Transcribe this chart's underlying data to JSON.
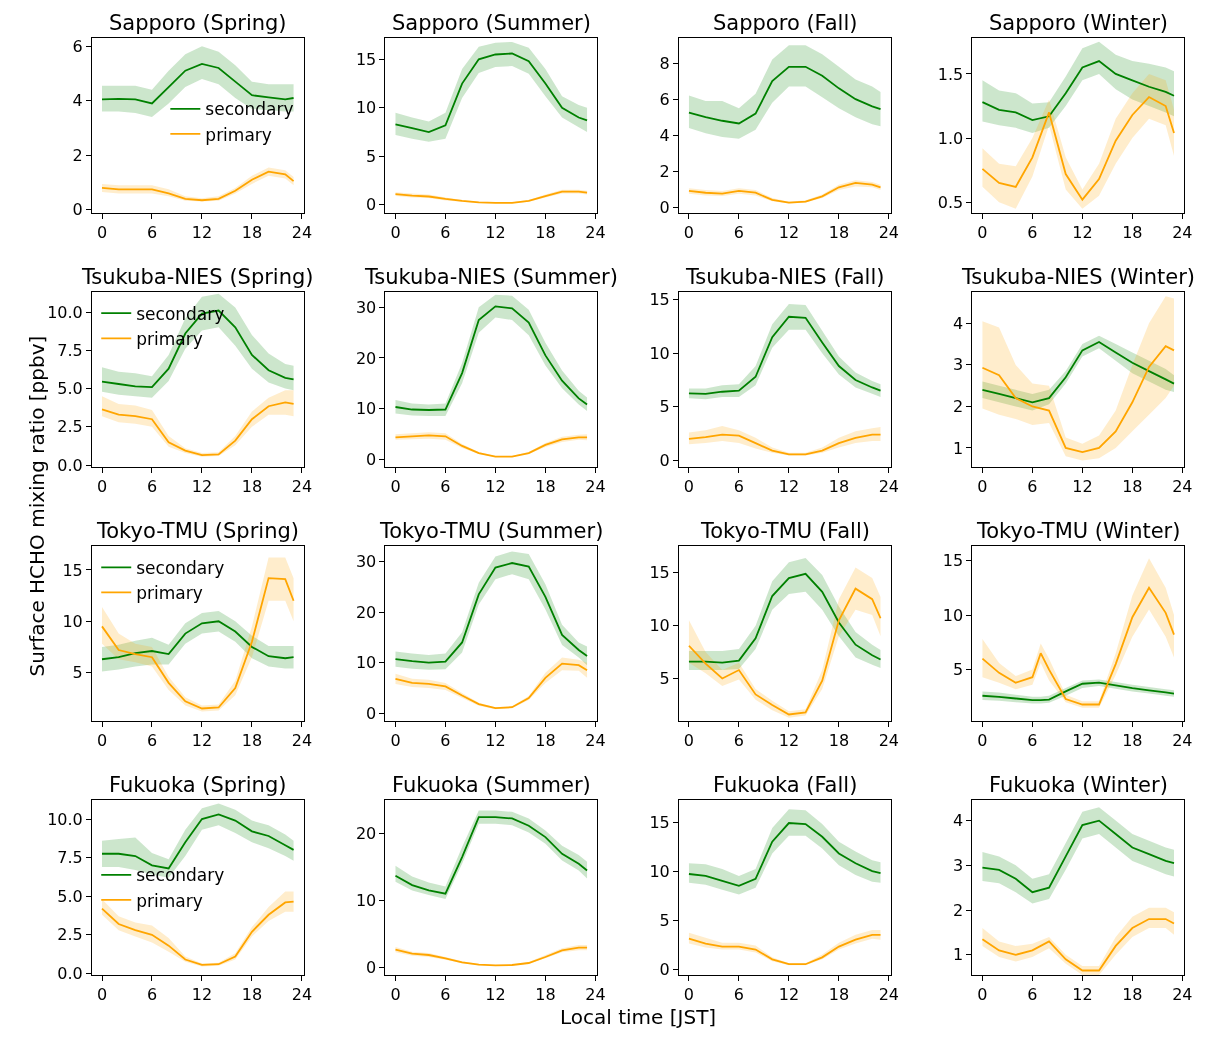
{
  "chart_data": [
    {
      "type": "line",
      "title": "Sapporo (Spring)",
      "legend": "center right",
      "x": [
        0,
        2,
        4,
        6,
        8,
        10,
        12,
        14,
        16,
        18,
        20,
        22,
        23
      ],
      "xlim": [
        -1.2,
        24.2
      ],
      "xticks": [
        0,
        6,
        12,
        18,
        24
      ],
      "ylim": [
        -0.1,
        6.3
      ],
      "yticks": [
        0,
        2,
        4,
        6
      ],
      "series": [
        {
          "name": "secondary",
          "color": "#008000",
          "values": [
            4.05,
            4.07,
            4.05,
            3.9,
            4.5,
            5.1,
            5.35,
            5.2,
            4.7,
            4.2,
            4.12,
            4.05,
            4.1
          ],
          "lower": [
            3.6,
            3.6,
            3.55,
            3.4,
            3.9,
            4.5,
            4.8,
            4.6,
            4.1,
            3.7,
            3.65,
            3.6,
            3.6
          ],
          "upper": [
            4.55,
            4.55,
            4.55,
            4.4,
            5.1,
            5.7,
            6.0,
            5.8,
            5.3,
            4.7,
            4.6,
            4.6,
            4.6
          ]
        },
        {
          "name": "primary",
          "color": "#ffa500",
          "values": [
            0.8,
            0.75,
            0.75,
            0.75,
            0.6,
            0.4,
            0.35,
            0.4,
            0.7,
            1.1,
            1.4,
            1.3,
            1.05
          ],
          "lower": [
            0.65,
            0.6,
            0.6,
            0.6,
            0.5,
            0.33,
            0.3,
            0.33,
            0.6,
            0.95,
            1.25,
            1.15,
            0.9
          ],
          "upper": [
            0.95,
            0.9,
            0.9,
            0.9,
            0.75,
            0.5,
            0.42,
            0.5,
            0.8,
            1.25,
            1.55,
            1.45,
            1.2
          ]
        }
      ]
    },
    {
      "type": "line",
      "title": "Sapporo (Summer)",
      "x": [
        0,
        2,
        4,
        6,
        8,
        10,
        12,
        14,
        16,
        18,
        20,
        22,
        23
      ],
      "xlim": [
        -1.2,
        24.2
      ],
      "xticks": [
        0,
        6,
        12,
        18,
        24
      ],
      "ylim": [
        -0.8,
        17.2
      ],
      "yticks": [
        0,
        5,
        10,
        15
      ],
      "series": [
        {
          "color": "#008000",
          "values": [
            8.3,
            7.9,
            7.5,
            8.2,
            12.5,
            15.0,
            15.5,
            15.6,
            14.8,
            12.5,
            10.0,
            9.0,
            8.7
          ],
          "lower": [
            7.2,
            6.8,
            6.5,
            6.8,
            11,
            13.6,
            14.2,
            14.3,
            13.5,
            11.2,
            9,
            8,
            7.5
          ],
          "upper": [
            9.5,
            9.0,
            8.6,
            9.5,
            14,
            16.3,
            16.7,
            16.8,
            16.2,
            14,
            11.2,
            10.3,
            10
          ]
        },
        {
          "color": "#ffa500",
          "values": [
            1.1,
            0.95,
            0.85,
            0.6,
            0.4,
            0.25,
            0.2,
            0.2,
            0.4,
            0.9,
            1.35,
            1.35,
            1.25
          ],
          "lower": [
            0.9,
            0.75,
            0.7,
            0.45,
            0.3,
            0.18,
            0.15,
            0.15,
            0.3,
            0.75,
            1.15,
            1.15,
            1.05
          ],
          "upper": [
            1.3,
            1.15,
            1.05,
            0.75,
            0.5,
            0.32,
            0.27,
            0.27,
            0.5,
            1.05,
            1.55,
            1.55,
            1.45
          ]
        }
      ]
    },
    {
      "type": "line",
      "title": "Sapporo (Fall)",
      "x": [
        0,
        2,
        4,
        6,
        8,
        10,
        12,
        14,
        16,
        18,
        20,
        22,
        23
      ],
      "xlim": [
        -1.2,
        24.2
      ],
      "xticks": [
        0,
        6,
        12,
        18,
        24
      ],
      "ylim": [
        -0.3,
        9.4
      ],
      "yticks": [
        0,
        2,
        4,
        6,
        8
      ],
      "series": [
        {
          "color": "#008000",
          "values": [
            5.25,
            5.0,
            4.8,
            4.65,
            5.2,
            7.0,
            7.8,
            7.8,
            7.3,
            6.6,
            6.0,
            5.6,
            5.45
          ],
          "lower": [
            4.4,
            4.1,
            3.9,
            3.8,
            4.3,
            5.8,
            6.7,
            6.7,
            6.1,
            5.5,
            5.0,
            4.6,
            4.5
          ],
          "upper": [
            6.2,
            5.9,
            5.9,
            5.5,
            6.3,
            8.2,
            9.0,
            9.0,
            8.5,
            7.8,
            7.1,
            6.7,
            6.4
          ]
        },
        {
          "color": "#ffa500",
          "values": [
            0.9,
            0.8,
            0.75,
            0.9,
            0.8,
            0.4,
            0.25,
            0.3,
            0.6,
            1.1,
            1.35,
            1.25,
            1.1
          ],
          "lower": [
            0.75,
            0.65,
            0.62,
            0.75,
            0.65,
            0.32,
            0.2,
            0.25,
            0.5,
            0.95,
            1.15,
            1.1,
            0.95
          ],
          "upper": [
            1.05,
            0.95,
            0.9,
            1.05,
            0.95,
            0.5,
            0.3,
            0.38,
            0.7,
            1.25,
            1.5,
            1.4,
            1.25
          ]
        }
      ]
    },
    {
      "type": "line",
      "title": "Sapporo (Winter)",
      "x": [
        0,
        2,
        4,
        6,
        8,
        10,
        12,
        14,
        16,
        18,
        20,
        22,
        23
      ],
      "xlim": [
        -1.2,
        24.2
      ],
      "xticks": [
        0,
        6,
        12,
        18,
        24
      ],
      "ylim": [
        0.42,
        1.78
      ],
      "yticks": [
        0.5,
        {
          "value": 1,
          "label": "1.0"
        },
        1.5
      ],
      "series": [
        {
          "color": "#008000",
          "values": [
            1.28,
            1.22,
            1.2,
            1.14,
            1.17,
            1.35,
            1.55,
            1.6,
            1.5,
            1.45,
            1.4,
            1.36,
            1.33
          ],
          "lower": [
            1.13,
            1.1,
            1.08,
            1.04,
            1.08,
            1.25,
            1.45,
            1.5,
            1.38,
            1.3,
            1.25,
            1.2,
            1.17
          ],
          "upper": [
            1.45,
            1.37,
            1.35,
            1.27,
            1.28,
            1.48,
            1.7,
            1.75,
            1.65,
            1.6,
            1.58,
            1.55,
            1.52
          ]
        },
        {
          "color": "#ffa500",
          "values": [
            0.76,
            0.65,
            0.62,
            0.85,
            1.2,
            0.72,
            0.52,
            0.68,
            0.98,
            1.18,
            1.32,
            1.25,
            1.04
          ],
          "lower": [
            0.62,
            0.5,
            0.45,
            0.7,
            1.1,
            0.6,
            0.45,
            0.55,
            0.8,
            1.0,
            1.15,
            1.1,
            0.86
          ],
          "upper": [
            0.92,
            0.8,
            0.78,
            1.0,
            1.3,
            0.85,
            0.6,
            0.8,
            1.15,
            1.35,
            1.5,
            1.45,
            1.22
          ]
        }
      ]
    },
    {
      "type": "line",
      "title": "Tsukuba-NIES (Spring)",
      "legend": "top left",
      "x": [
        0,
        2,
        4,
        6,
        8,
        10,
        12,
        14,
        16,
        18,
        20,
        22,
        23
      ],
      "xlim": [
        -1.2,
        24.2
      ],
      "xticks": [
        0,
        6,
        12,
        18,
        24
      ],
      "ylim": [
        -0.1,
        11.3
      ],
      "yticks": [
        {
          "value": 0,
          "label": "0.0"
        },
        2.5,
        {
          "value": 5,
          "label": "5.0"
        },
        7.5,
        {
          "value": 10,
          "label": "10.0"
        }
      ],
      "series": [
        {
          "name": "secondary",
          "color": "#008000",
          "values": [
            5.45,
            5.3,
            5.15,
            5.1,
            6.3,
            8.6,
            9.9,
            10.1,
            9.0,
            7.2,
            6.2,
            5.7,
            5.6
          ],
          "lower": [
            4.8,
            4.6,
            4.5,
            4.4,
            5.5,
            7.6,
            8.8,
            9.0,
            7.8,
            6.3,
            5.4,
            5.0,
            4.9
          ],
          "upper": [
            6.4,
            6.1,
            6.0,
            5.8,
            7.2,
            9.6,
            11,
            11.2,
            10.3,
            8.5,
            7.3,
            6.6,
            6.5
          ]
        },
        {
          "name": "primary",
          "color": "#ffa500",
          "values": [
            3.65,
            3.3,
            3.2,
            3.0,
            1.5,
            0.95,
            0.65,
            0.7,
            1.6,
            3.0,
            3.85,
            4.1,
            4.0
          ],
          "lower": [
            3.2,
            2.8,
            2.7,
            2.5,
            1.2,
            0.8,
            0.55,
            0.6,
            1.3,
            2.5,
            3.3,
            3.3,
            3.2
          ],
          "upper": [
            4.5,
            4.0,
            3.9,
            3.6,
            1.9,
            1.1,
            0.8,
            0.85,
            1.9,
            3.5,
            4.4,
            4.9,
            4.9
          ]
        }
      ]
    },
    {
      "type": "line",
      "title": "Tsukuba-NIES (Summer)",
      "x": [
        0,
        2,
        4,
        6,
        8,
        10,
        12,
        14,
        16,
        18,
        20,
        22,
        23
      ],
      "xlim": [
        -1.2,
        24.2
      ],
      "xticks": [
        0,
        6,
        12,
        18,
        24
      ],
      "ylim": [
        -1.5,
        33
      ],
      "yticks": [
        0,
        10,
        20,
        30
      ],
      "series": [
        {
          "color": "#008000",
          "values": [
            10.3,
            9.8,
            9.7,
            9.8,
            17,
            27.5,
            30.2,
            29.8,
            27,
            20.5,
            15.5,
            12,
            10.8
          ],
          "lower": [
            9,
            8.6,
            8.5,
            8.5,
            15,
            25,
            28,
            27.5,
            24.5,
            18.5,
            14,
            10.8,
            9.5
          ],
          "upper": [
            11.7,
            11,
            10.8,
            11,
            19,
            30,
            32.5,
            32.3,
            29.5,
            23,
            17.5,
            13.5,
            12.2
          ]
        },
        {
          "color": "#ffa500",
          "values": [
            4.3,
            4.5,
            4.7,
            4.5,
            2.6,
            1.2,
            0.5,
            0.5,
            1.2,
            2.8,
            3.9,
            4.3,
            4.3
          ],
          "lower": [
            3.8,
            3.9,
            4.0,
            3.8,
            2.2,
            1.0,
            0.4,
            0.4,
            1.0,
            2.4,
            3.4,
            3.8,
            3.7
          ],
          "upper": [
            4.9,
            5.1,
            5.3,
            5.1,
            3.0,
            1.4,
            0.6,
            0.6,
            1.4,
            3.2,
            4.4,
            4.8,
            4.9
          ]
        }
      ]
    },
    {
      "type": "line",
      "title": "Tsukuba-NIES (Fall)",
      "x": [
        0,
        2,
        4,
        6,
        8,
        10,
        12,
        14,
        16,
        18,
        20,
        22,
        23
      ],
      "xlim": [
        -1.2,
        24.2
      ],
      "xticks": [
        0,
        6,
        12,
        18,
        24
      ],
      "ylim": [
        -0.6,
        15.7
      ],
      "yticks": [
        0,
        5,
        10,
        15
      ],
      "series": [
        {
          "color": "#008000",
          "values": [
            6.25,
            6.2,
            6.4,
            6.5,
            7.8,
            11.5,
            13.4,
            13.3,
            11.0,
            8.8,
            7.5,
            6.8,
            6.5
          ],
          "lower": [
            5.8,
            5.7,
            5.9,
            5.9,
            7.0,
            10.5,
            12.2,
            12.2,
            10,
            8,
            6.8,
            6.2,
            5.9
          ],
          "upper": [
            6.7,
            6.7,
            7.0,
            7.1,
            8.8,
            12.7,
            14.6,
            14.5,
            12.1,
            9.7,
            8.2,
            7.4,
            7.1
          ]
        },
        {
          "color": "#ffa500",
          "values": [
            2.0,
            2.15,
            2.4,
            2.3,
            1.6,
            0.9,
            0.55,
            0.55,
            0.9,
            1.6,
            2.1,
            2.4,
            2.4
          ],
          "lower": [
            1.5,
            1.6,
            1.8,
            1.6,
            1.1,
            0.7,
            0.45,
            0.45,
            0.7,
            1.2,
            1.6,
            1.8,
            1.8
          ],
          "upper": [
            2.6,
            2.8,
            3.2,
            2.8,
            2.1,
            1.2,
            0.7,
            0.7,
            1.2,
            2.1,
            2.7,
            3.0,
            3.1
          ]
        }
      ]
    },
    {
      "type": "line",
      "title": "Tsukuba-NIES (Winter)",
      "x": [
        0,
        2,
        4,
        6,
        8,
        10,
        12,
        14,
        16,
        18,
        20,
        22,
        23
      ],
      "xlim": [
        -1.2,
        24.2
      ],
      "xticks": [
        0,
        6,
        12,
        18,
        24
      ],
      "ylim": [
        0.55,
        4.75
      ],
      "yticks": [
        1,
        2,
        3,
        4
      ],
      "series": [
        {
          "color": "#008000",
          "values": [
            2.4,
            2.3,
            2.2,
            2.1,
            2.2,
            2.7,
            3.35,
            3.55,
            3.3,
            3.05,
            2.85,
            2.65,
            2.55
          ],
          "lower": [
            2.2,
            2.1,
            2.0,
            1.9,
            2.05,
            2.55,
            3.2,
            3.4,
            3.1,
            2.8,
            2.6,
            2.4,
            2.35
          ],
          "upper": [
            2.6,
            2.5,
            2.4,
            2.3,
            2.4,
            2.85,
            3.5,
            3.7,
            3.5,
            3.3,
            3.1,
            2.9,
            2.75
          ]
        },
        {
          "color": "#ffa500",
          "values": [
            2.93,
            2.75,
            2.2,
            2.0,
            1.9,
            1.0,
            0.9,
            1.0,
            1.4,
            2.1,
            2.95,
            3.45,
            3.35
          ],
          "lower": [
            1.95,
            1.8,
            1.7,
            1.55,
            1.6,
            0.8,
            0.7,
            0.75,
            1.0,
            1.4,
            1.8,
            2.2,
            2.5
          ],
          "upper": [
            4.05,
            3.9,
            3.0,
            2.55,
            2.5,
            1.25,
            1.1,
            1.3,
            1.9,
            3.0,
            4.0,
            4.65,
            4.6
          ]
        }
      ]
    },
    {
      "type": "line",
      "title": "Tokyo-TMU (Spring)",
      "ylabel": "Surface HCHO mixing ratio [ppbv]",
      "legend": "top left",
      "x": [
        0,
        2,
        4,
        6,
        8,
        10,
        12,
        14,
        16,
        18,
        20,
        22,
        23
      ],
      "xlim": [
        -1.2,
        24.2
      ],
      "xticks": [
        0,
        6,
        12,
        18,
        24
      ],
      "ylim": [
        0.3,
        17.3
      ],
      "yticks": [
        5,
        10,
        15
      ],
      "series": [
        {
          "name": "secondary",
          "color": "#008000",
          "values": [
            6.3,
            6.5,
            6.9,
            7.1,
            6.8,
            8.8,
            9.8,
            10.0,
            9.0,
            7.5,
            6.6,
            6.4,
            6.5
          ],
          "lower": [
            5.1,
            5.3,
            5.6,
            5.8,
            5.8,
            7.8,
            8.8,
            9.0,
            8.0,
            6.4,
            5.6,
            5.4,
            5.4
          ],
          "upper": [
            7.5,
            7.7,
            8.1,
            8.4,
            7.7,
            9.8,
            10.8,
            11,
            10.0,
            8.6,
            7.6,
            7.6,
            7.6
          ]
        },
        {
          "name": "primary",
          "color": "#ffa500",
          "values": [
            9.5,
            7.2,
            6.8,
            6.5,
            4.0,
            2.2,
            1.5,
            1.6,
            3.5,
            8.0,
            14.2,
            14.1,
            12.0
          ],
          "lower": [
            7.8,
            6.3,
            6.0,
            5.6,
            3.3,
            1.8,
            1.2,
            1.3,
            2.8,
            6.5,
            12,
            12,
            10
          ],
          "upper": [
            11.4,
            8.8,
            7.8,
            7.5,
            4.6,
            2.6,
            1.8,
            1.9,
            4.2,
            9.5,
            16.2,
            16.2,
            14.2
          ]
        }
      ]
    },
    {
      "type": "line",
      "title": "Tokyo-TMU (Summer)",
      "x": [
        0,
        2,
        4,
        6,
        8,
        10,
        12,
        14,
        16,
        18,
        20,
        22,
        23
      ],
      "xlim": [
        -1.2,
        24.2
      ],
      "xticks": [
        0,
        6,
        12,
        18,
        24
      ],
      "ylim": [
        -1.5,
        33
      ],
      "yticks": [
        0,
        10,
        20,
        30
      ],
      "series": [
        {
          "color": "#008000",
          "values": [
            10.7,
            10.3,
            10.0,
            10.2,
            14,
            23.5,
            28.8,
            29.7,
            29.0,
            23,
            15.5,
            12.5,
            11.3
          ],
          "lower": [
            9.2,
            8.8,
            8.6,
            8.7,
            12,
            21.5,
            26.5,
            27.5,
            26.5,
            20.5,
            13.5,
            11,
            9.5
          ],
          "upper": [
            12.2,
            11.8,
            11.5,
            11.8,
            16,
            25.8,
            31,
            32,
            31.5,
            25.5,
            17.5,
            14,
            13.2
          ]
        },
        {
          "color": "#ffa500",
          "values": [
            6.8,
            6.0,
            5.8,
            5.3,
            3.5,
            1.8,
            1.0,
            1.2,
            3.0,
            7.0,
            9.8,
            9.5,
            8.5
          ],
          "lower": [
            5.8,
            5.2,
            5.0,
            4.6,
            3.0,
            1.5,
            0.8,
            1.0,
            2.6,
            6.0,
            8.5,
            8.4,
            7.0
          ],
          "upper": [
            7.8,
            6.8,
            6.6,
            6.0,
            4.0,
            2.1,
            1.2,
            1.4,
            3.4,
            8.0,
            11.0,
            10.6,
            10.0
          ]
        }
      ]
    },
    {
      "type": "line",
      "title": "Tokyo-TMU (Fall)",
      "x": [
        0,
        2,
        4,
        6,
        8,
        10,
        12,
        14,
        16,
        18,
        20,
        22,
        23
      ],
      "xlim": [
        -1.2,
        24.2
      ],
      "xticks": [
        0,
        6,
        12,
        18,
        24
      ],
      "ylim": [
        1.0,
        17.5
      ],
      "yticks": [
        5,
        10,
        15
      ],
      "series": [
        {
          "color": "#008000",
          "values": [
            6.6,
            6.6,
            6.5,
            6.7,
            8.8,
            12.8,
            14.5,
            14.9,
            13.2,
            10.3,
            8.2,
            7.2,
            6.8
          ],
          "lower": [
            5.8,
            5.8,
            5.8,
            5.9,
            7.8,
            11.5,
            13.0,
            13.2,
            11.5,
            9.0,
            7.0,
            6.3,
            6.0
          ],
          "upper": [
            7.6,
            7.6,
            7.6,
            7.8,
            10,
            14.2,
            16,
            16.4,
            14.8,
            11.8,
            9.4,
            8.2,
            7.7
          ]
        },
        {
          "color": "#ffa500",
          "values": [
            8.1,
            6.4,
            5.0,
            5.8,
            3.5,
            2.5,
            1.6,
            1.8,
            4.8,
            10.5,
            13.5,
            12.5,
            10.7
          ],
          "lower": [
            6.5,
            5.5,
            4.3,
            4.9,
            3.0,
            2.0,
            1.3,
            1.5,
            4.0,
            9.0,
            11.5,
            11.0,
            9.0
          ],
          "upper": [
            10.5,
            7.5,
            5.8,
            6.5,
            4.0,
            2.9,
            1.9,
            2.1,
            5.8,
            12.5,
            15.5,
            14.5,
            12.7
          ]
        }
      ]
    },
    {
      "type": "line",
      "title": "Tokyo-TMU (Winter)",
      "x": [
        0,
        2,
        4,
        6,
        7,
        8,
        10,
        12,
        14,
        16,
        18,
        20,
        22,
        23
      ],
      "xlim": [
        -1.2,
        24.2
      ],
      "xticks": [
        0,
        6,
        12,
        18,
        24
      ],
      "ylim": [
        0.3,
        16.3
      ],
      "yticks": [
        5,
        10,
        15
      ],
      "series": [
        {
          "color": "#008000",
          "values": [
            2.6,
            2.5,
            2.35,
            2.2,
            2.2,
            2.25,
            3.0,
            3.7,
            3.8,
            3.55,
            3.3,
            3.1,
            2.9,
            2.8
          ],
          "lower": [
            2.2,
            2.15,
            2.0,
            1.9,
            1.9,
            1.95,
            2.6,
            3.3,
            3.5,
            3.25,
            3.0,
            2.8,
            2.6,
            2.5
          ],
          "upper": [
            3.0,
            2.9,
            2.7,
            2.5,
            2.5,
            2.6,
            3.3,
            4.0,
            4.1,
            3.85,
            3.6,
            3.4,
            3.2,
            3.1
          ]
        },
        {
          "color": "#ffa500",
          "values": [
            6.0,
            4.7,
            3.8,
            4.3,
            6.5,
            5.0,
            2.3,
            1.8,
            1.8,
            5.5,
            9.8,
            12.5,
            10.2,
            8.2
          ],
          "lower": [
            4.3,
            3.8,
            3.2,
            3.6,
            5.6,
            4.0,
            2.0,
            1.5,
            1.5,
            4.5,
            8.0,
            10.5,
            8.0,
            6.1
          ],
          "upper": [
            7.8,
            5.6,
            4.4,
            5.0,
            7.4,
            6.0,
            2.7,
            2.1,
            2.1,
            6.5,
            11.8,
            15.2,
            12.5,
            10.0
          ]
        }
      ]
    },
    {
      "type": "line",
      "title": "Fukuoka (Spring)",
      "legend": "center left",
      "x": [
        0,
        2,
        4,
        6,
        8,
        10,
        12,
        14,
        16,
        18,
        20,
        22,
        23
      ],
      "xlim": [
        -1.2,
        24.2
      ],
      "xticks": [
        0,
        6,
        12,
        18,
        24
      ],
      "ylim": [
        -0.1,
        11.2
      ],
      "yticks": [
        {
          "value": 0,
          "label": "0.0"
        },
        2.5,
        {
          "value": 5,
          "label": "5.0"
        },
        7.5,
        {
          "value": 10,
          "label": "10.0"
        }
      ],
      "series": [
        {
          "name": "secondary",
          "color": "#008000",
          "values": [
            7.75,
            7.75,
            7.6,
            7.0,
            6.8,
            8.5,
            10.0,
            10.3,
            9.9,
            9.2,
            8.9,
            8.3,
            8.0
          ],
          "lower": [
            6.9,
            6.9,
            6.7,
            6.4,
            6.2,
            7.6,
            9.3,
            9.6,
            9.1,
            8.5,
            8.1,
            7.6,
            7.3
          ],
          "upper": [
            8.6,
            8.7,
            8.8,
            7.8,
            7.4,
            9.3,
            10.7,
            11.0,
            10.6,
            9.9,
            9.6,
            9.0,
            8.6
          ]
        },
        {
          "name": "primary",
          "color": "#ffa500",
          "values": [
            4.2,
            3.2,
            2.8,
            2.5,
            1.8,
            0.9,
            0.55,
            0.6,
            1.1,
            2.7,
            3.8,
            4.6,
            4.65
          ],
          "lower": [
            3.8,
            2.8,
            2.4,
            2.0,
            1.4,
            0.75,
            0.45,
            0.5,
            0.9,
            2.4,
            3.4,
            4.0,
            4.0
          ],
          "upper": [
            4.8,
            3.7,
            3.3,
            3.1,
            2.3,
            1.1,
            0.65,
            0.7,
            1.3,
            3.0,
            4.3,
            5.3,
            5.3
          ]
        }
      ]
    },
    {
      "type": "line",
      "title": "Fukuoka (Summer)",
      "xlabel": "Local time [JST]",
      "x": [
        0,
        2,
        4,
        6,
        8,
        10,
        12,
        14,
        16,
        18,
        20,
        22,
        23
      ],
      "xlim": [
        -1.2,
        24.2
      ],
      "xticks": [
        0,
        6,
        12,
        18,
        24
      ],
      "ylim": [
        -1.2,
        25
      ],
      "yticks": [
        0,
        10,
        20
      ],
      "series": [
        {
          "color": "#008000",
          "values": [
            13.7,
            12.3,
            11.5,
            11.0,
            16.5,
            22.5,
            22.5,
            22.3,
            21.2,
            19.5,
            17,
            15.5,
            14.5
          ],
          "lower": [
            12.8,
            11.5,
            10.8,
            10.2,
            15.5,
            21.5,
            21.5,
            21.3,
            20.2,
            18.5,
            16,
            14.5,
            13.3
          ],
          "upper": [
            15.2,
            13.6,
            12.7,
            12.1,
            18,
            23.5,
            23.5,
            23.3,
            22.3,
            20.5,
            18.2,
            16.8,
            15.8
          ]
        },
        {
          "color": "#ffa500",
          "values": [
            2.6,
            2.0,
            1.8,
            1.3,
            0.7,
            0.35,
            0.25,
            0.3,
            0.6,
            1.5,
            2.5,
            2.9,
            2.9
          ],
          "lower": [
            2.2,
            1.7,
            1.5,
            1.1,
            0.55,
            0.28,
            0.2,
            0.25,
            0.5,
            1.3,
            2.2,
            2.5,
            2.5
          ],
          "upper": [
            3.0,
            2.3,
            2.1,
            1.5,
            0.85,
            0.45,
            0.3,
            0.35,
            0.75,
            1.8,
            2.8,
            3.3,
            3.3
          ]
        }
      ]
    },
    {
      "type": "line",
      "title": "Fukuoka (Fall)",
      "x": [
        0,
        2,
        4,
        6,
        8,
        10,
        12,
        14,
        16,
        18,
        20,
        22,
        23
      ],
      "xlim": [
        -1.2,
        24.2
      ],
      "xticks": [
        0,
        6,
        12,
        18,
        24
      ],
      "ylim": [
        -0.6,
        17.2
      ],
      "yticks": [
        0,
        5,
        10,
        15
      ],
      "series": [
        {
          "color": "#008000",
          "values": [
            9.7,
            9.5,
            9.0,
            8.5,
            9.2,
            13.0,
            14.9,
            14.8,
            13.5,
            11.8,
            10.8,
            10.0,
            9.8
          ],
          "lower": [
            8.8,
            8.6,
            8.1,
            7.6,
            8.3,
            11.8,
            13.6,
            13.6,
            12.3,
            10.6,
            9.6,
            8.9,
            8.8
          ],
          "upper": [
            10.8,
            10.7,
            10.2,
            9.5,
            10.2,
            14.4,
            16.3,
            16.2,
            14.8,
            13.0,
            12.0,
            11.1,
            10.9
          ]
        },
        {
          "color": "#ffa500",
          "values": [
            3.1,
            2.6,
            2.3,
            2.3,
            2.0,
            1.0,
            0.5,
            0.5,
            1.2,
            2.3,
            3.0,
            3.5,
            3.5
          ],
          "lower": [
            2.6,
            2.2,
            2.0,
            2.0,
            1.7,
            0.8,
            0.4,
            0.4,
            1.0,
            2.0,
            2.6,
            3.1,
            3.0
          ],
          "upper": [
            3.7,
            3.2,
            2.7,
            2.7,
            2.4,
            1.2,
            0.6,
            0.6,
            1.5,
            2.7,
            3.5,
            4.0,
            4.0
          ]
        }
      ]
    },
    {
      "type": "line",
      "title": "Fukuoka (Winter)",
      "x": [
        0,
        2,
        4,
        6,
        8,
        10,
        12,
        14,
        16,
        18,
        20,
        22,
        23
      ],
      "xlim": [
        -1.2,
        24.2
      ],
      "xticks": [
        0,
        6,
        12,
        18,
        24
      ],
      "ylim": [
        0.55,
        4.45
      ],
      "yticks": [
        1,
        2,
        3,
        4
      ],
      "series": [
        {
          "color": "#008000",
          "values": [
            2.95,
            2.9,
            2.7,
            2.4,
            2.5,
            3.2,
            3.9,
            4.0,
            3.7,
            3.4,
            3.25,
            3.1,
            3.05
          ],
          "lower": [
            2.65,
            2.6,
            2.4,
            2.15,
            2.25,
            2.9,
            3.6,
            3.7,
            3.4,
            3.1,
            2.95,
            2.8,
            2.75
          ],
          "upper": [
            3.3,
            3.2,
            3.0,
            2.7,
            2.8,
            3.5,
            4.2,
            4.3,
            4.0,
            3.7,
            3.55,
            3.4,
            3.35
          ]
        },
        {
          "color": "#ffa500",
          "values": [
            1.35,
            1.1,
            1.0,
            1.1,
            1.3,
            0.9,
            0.65,
            0.65,
            1.2,
            1.6,
            1.8,
            1.8,
            1.7
          ],
          "lower": [
            1.2,
            0.95,
            0.85,
            0.95,
            1.15,
            0.8,
            0.55,
            0.55,
            1.0,
            1.4,
            1.6,
            1.6,
            1.45
          ],
          "upper": [
            1.6,
            1.3,
            1.2,
            1.25,
            1.4,
            1.0,
            0.75,
            0.75,
            1.4,
            1.85,
            2.05,
            2.05,
            1.95
          ]
        }
      ]
    }
  ]
}
